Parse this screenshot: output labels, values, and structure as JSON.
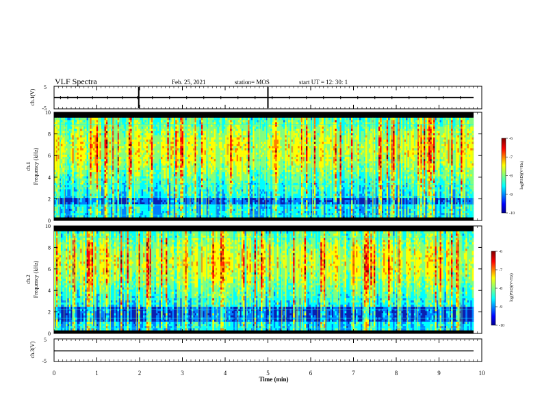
{
  "header": {
    "title": "VLF Spectra",
    "date": "Feb. 25, 2021",
    "station": "station= MOS",
    "start": "start UT =  12: 30: 1"
  },
  "chart_data": [
    {
      "type": "line",
      "panel": "ch1-waveform",
      "ylabel": "ch.1(V)",
      "ylim": [
        -5,
        5
      ],
      "yticks": [
        "5",
        "-5"
      ],
      "x": [
        0,
        10
      ],
      "y": [
        0,
        0
      ],
      "description_values": {
        "level_V": 0
      }
    },
    {
      "type": "heatmap",
      "panel": "ch1-spectrogram",
      "ylabel": "ch.1\nFrequency (kHz)",
      "ylim": [
        0,
        10
      ],
      "xlim": [
        0,
        10
      ],
      "yticks": [
        "0",
        "2",
        "4",
        "6",
        "8",
        "10"
      ],
      "data_end_min": 9.8,
      "colorbar": {
        "label": "log(PSD)(V²/Hz)",
        "range": [
          -10,
          -6
        ],
        "ticks": [
          "-6",
          "-7",
          "-8",
          "-9",
          "-10"
        ],
        "colormap": "jet"
      },
      "band_limits_kHz": [
        0.3,
        9.5
      ],
      "features": {
        "band_ceiling_kHz": 9.2,
        "notch_kHz": [
          1.5,
          1.9
        ]
      }
    },
    {
      "type": "heatmap",
      "panel": "ch2-spectrogram",
      "ylabel": "ch.2\nFrequency (kHz)",
      "ylim": [
        0,
        10
      ],
      "xlim": [
        0,
        10
      ],
      "yticks": [
        "0",
        "2",
        "4",
        "6",
        "8",
        "10"
      ],
      "data_end_min": 9.8,
      "colorbar": {
        "label": "log(PSD)(V²/Hz)",
        "range": [
          -10,
          -6
        ],
        "ticks": [
          "-6",
          "-7",
          "-8",
          "-9",
          "-10"
        ],
        "colormap": "jet"
      },
      "band_limits_kHz": [
        0.3,
        9.5
      ],
      "features": {
        "band_ceiling_kHz": 9.0,
        "notch_kHz": [
          1.0,
          2.4
        ]
      }
    },
    {
      "type": "line",
      "panel": "ch3-waveform",
      "ylabel": "ch.3(V)",
      "ylim": [
        -5,
        5
      ],
      "yticks": [
        "5",
        "-5"
      ],
      "x": [
        0,
        10
      ],
      "y": [
        0,
        0
      ]
    }
  ],
  "xaxis": {
    "label": "Time (min)",
    "ticks": [
      "0",
      "1",
      "2",
      "3",
      "4",
      "5",
      "6",
      "7",
      "8",
      "9",
      "10"
    ],
    "range": [
      0,
      10
    ]
  },
  "colors": {
    "jet": [
      "#00008f",
      "#0000ff",
      "#0080ff",
      "#00ffff",
      "#80ff80",
      "#ffff00",
      "#ff8000",
      "#ff0000",
      "#800000"
    ],
    "background": "#000000",
    "line": "#000000"
  }
}
